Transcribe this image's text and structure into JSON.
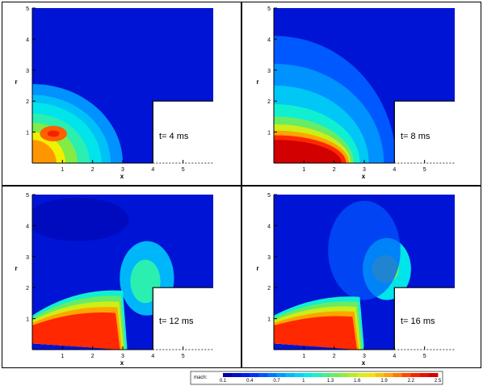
{
  "axis_labels": {
    "x": "x",
    "r": "r"
  },
  "x_ticks": [
    "1",
    "2",
    "3",
    "4",
    "5"
  ],
  "r_ticks": [
    "1",
    "2",
    "3",
    "4",
    "5"
  ],
  "legend": {
    "label": "mach:",
    "ticks": [
      "0.1",
      "0.4",
      "0.7",
      "1",
      "1.3",
      "1.6",
      "1.9",
      "2.2",
      "2.5"
    ],
    "range": [
      0.1,
      2.5
    ]
  },
  "chart_data": [
    {
      "type": "heatmap",
      "variable": "mach",
      "time_label": "t= 4 ms",
      "time_ms": 4,
      "xlim": [
        0,
        6
      ],
      "ylim": [
        0,
        5
      ],
      "xlabel": "x",
      "ylabel": "r",
      "max_mach": 1.9
    },
    {
      "type": "heatmap",
      "variable": "mach",
      "time_label": "t= 8 ms",
      "time_ms": 8,
      "xlim": [
        0,
        6
      ],
      "ylim": [
        0,
        5
      ],
      "xlabel": "x",
      "ylabel": "r",
      "max_mach": 2.5
    },
    {
      "type": "heatmap",
      "variable": "mach",
      "time_label": "t= 12 ms",
      "time_ms": 12,
      "xlim": [
        0,
        6
      ],
      "ylim": [
        0,
        5
      ],
      "xlabel": "x",
      "ylabel": "r",
      "max_mach": 2.5
    },
    {
      "type": "heatmap",
      "variable": "mach",
      "time_label": "t= 16 ms",
      "time_ms": 16,
      "xlim": [
        0,
        6
      ],
      "ylim": [
        0,
        5
      ],
      "xlabel": "x",
      "ylabel": "r",
      "max_mach": 2.5
    }
  ]
}
